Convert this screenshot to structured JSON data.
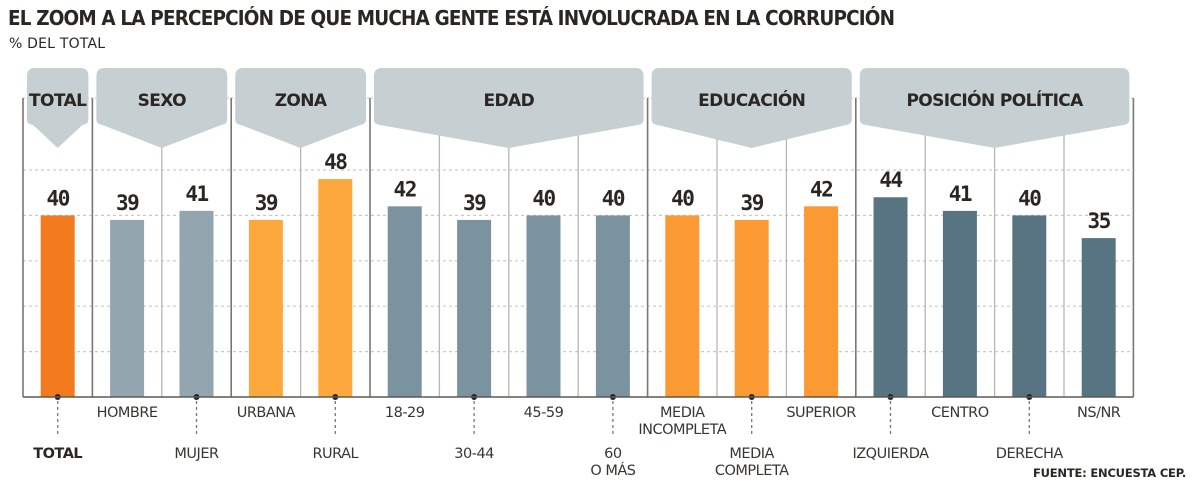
{
  "header": {
    "title": "EL ZOOM A LA PERCEPCIÓN DE QUE MUCHA GENTE ESTÁ INVOLUCRADA EN LA CORRUPCIÓN",
    "subtitle": "% DEL TOTAL"
  },
  "footer": {
    "source": "FUENTE: ENCUESTA CEP."
  },
  "colors": {
    "total": "#f47a20",
    "sexo": "#93a6b0",
    "zona": "#fca83c",
    "edad": "#7b939e",
    "educacion": "#fb9a32",
    "posicion": "#587483",
    "banner": "#c6cfd2"
  },
  "chart_data": {
    "type": "bar",
    "title": "EL ZOOM A LA PERCEPCIÓN DE QUE MUCHA GENTE ESTÁ INVOLUCRADA EN LA CORRUPCIÓN",
    "subtitle": "% DEL TOTAL",
    "xlabel": "",
    "ylabel": "% DEL TOTAL",
    "ylim": [
      0,
      50
    ],
    "grid": true,
    "legend": "none",
    "groups": [
      {
        "name": "TOTAL",
        "color_key": "total",
        "categories": [
          "TOTAL"
        ],
        "values": [
          40
        ]
      },
      {
        "name": "SEXO",
        "color_key": "sexo",
        "categories": [
          "HOMBRE",
          "MUJER"
        ],
        "values": [
          39,
          41
        ]
      },
      {
        "name": "ZONA",
        "color_key": "zona",
        "categories": [
          "URBANA",
          "RURAL"
        ],
        "values": [
          39,
          48
        ]
      },
      {
        "name": "EDAD",
        "color_key": "edad",
        "categories": [
          "18-29",
          "30-44",
          "45-59",
          "60\nO MÁS"
        ],
        "values": [
          42,
          39,
          40,
          40
        ]
      },
      {
        "name": "EDUCACIÓN",
        "color_key": "educacion",
        "categories": [
          "MEDIA\nINCOMPLETA",
          "MEDIA\nCOMPLETA",
          "SUPERIOR"
        ],
        "values": [
          40,
          39,
          42
        ]
      },
      {
        "name": "POSICIÓN POLÍTICA",
        "color_key": "posicion",
        "categories": [
          "IZQUIERDA",
          "CENTRO",
          "DERECHA",
          "NS/NR"
        ],
        "values": [
          44,
          41,
          40,
          35
        ]
      }
    ],
    "source": "FUENTE: ENCUESTA CEP."
  }
}
